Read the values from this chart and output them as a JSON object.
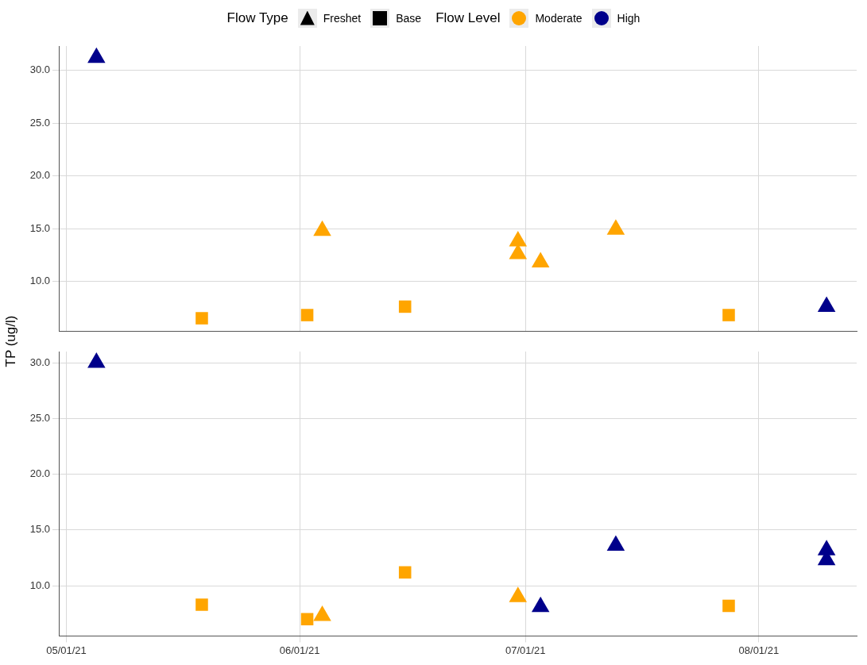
{
  "chart_data": [
    {
      "type": "scatter",
      "legend_title": [
        "Flow Type",
        "Flow Level"
      ],
      "annotations": [
        "Freshet",
        "Base",
        "Moderate",
        "High"
      ],
      "grid": true,
      "tick_labels": "y",
      "xlim": [
        "2021-04-30",
        "2021-08-14"
      ],
      "xticks": [
        {
          "value": "2021-05-01",
          "label": null
        },
        {
          "value": "2021-06-01",
          "label": null
        },
        {
          "value": "2021-07-01",
          "label": null
        },
        {
          "value": "2021-08-01",
          "label": null
        }
      ],
      "ylim": [
        5.3,
        32.3
      ],
      "yticks": [
        {
          "value": 10,
          "label": "10.0"
        },
        {
          "value": 15,
          "label": "15.0"
        },
        {
          "value": 20,
          "label": "20.0"
        },
        {
          "value": 25,
          "label": "25.0"
        },
        {
          "value": 30,
          "label": "30.0"
        }
      ],
      "series": [
        {
          "color": "#ffa500",
          "marker": "triangle",
          "x": [
            "2021-06-04",
            "2021-06-30",
            "2021-06-30",
            "2021-07-03",
            "2021-07-13"
          ],
          "values": [
            14.8,
            13.8,
            12.6,
            11.8,
            14.9
          ]
        },
        {
          "color": "#ffa500",
          "marker": "square",
          "x": [
            "2021-05-19",
            "2021-06-02",
            "2021-06-15",
            "2021-07-28"
          ],
          "values": [
            6.5,
            6.8,
            7.6,
            6.8
          ]
        },
        {
          "color": "#00008b",
          "marker": "triangle",
          "x": [
            "2021-05-05",
            "2021-08-10"
          ],
          "values": [
            31.2,
            7.6
          ]
        }
      ]
    },
    {
      "type": "scatter",
      "grid": true,
      "ylabel": "TP (ug/l)",
      "xlim": [
        "2021-04-30",
        "2021-08-14"
      ],
      "xticks": [
        {
          "value": "2021-05-01",
          "label": "05/01/21"
        },
        {
          "value": "2021-06-01",
          "label": "06/01/21"
        },
        {
          "value": "2021-07-01",
          "label": "07/01/21"
        },
        {
          "value": "2021-08-01",
          "label": "08/01/21"
        }
      ],
      "ylim": [
        5.5,
        31
      ],
      "yticks": [
        {
          "value": 10,
          "label": "10.0"
        },
        {
          "value": 15,
          "label": "15.0"
        },
        {
          "value": 20,
          "label": "20.0"
        },
        {
          "value": 25,
          "label": "25.0"
        },
        {
          "value": 30,
          "label": "30.0"
        }
      ],
      "series": [
        {
          "color": "#ffa500",
          "marker": "triangle",
          "x": [
            "2021-06-04",
            "2021-06-30"
          ],
          "values": [
            7.3,
            9.0
          ]
        },
        {
          "color": "#ffa500",
          "marker": "square",
          "x": [
            "2021-05-19",
            "2021-06-02",
            "2021-06-15",
            "2021-07-28"
          ],
          "values": [
            8.3,
            7.0,
            11.2,
            8.2
          ]
        },
        {
          "color": "#00008b",
          "marker": "triangle",
          "x": [
            "2021-05-05",
            "2021-07-03",
            "2021-07-13",
            "2021-08-10",
            "2021-08-10"
          ],
          "values": [
            30.0,
            8.1,
            13.6,
            13.2,
            12.3
          ]
        }
      ]
    }
  ]
}
